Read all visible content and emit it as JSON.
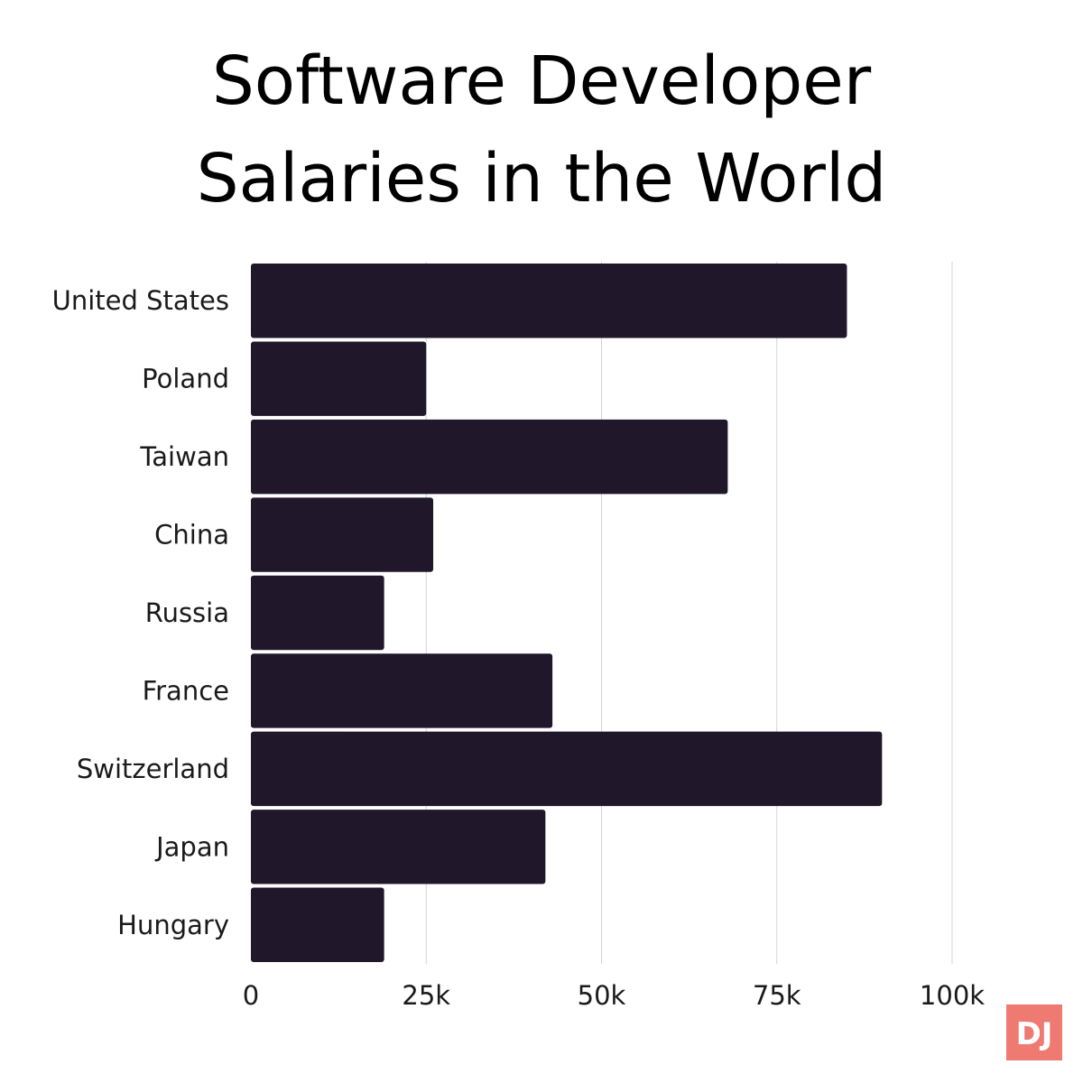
{
  "chart_data": {
    "type": "bar",
    "orientation": "horizontal",
    "title": "Software Developer Salaries in the World",
    "title_lines": [
      "Software Developer",
      "Salaries in the World"
    ],
    "categories": [
      "United States",
      "Poland",
      "Taiwan",
      "China",
      "Russia",
      "France",
      "Switzerland",
      "Japan",
      "Hungary"
    ],
    "values": [
      85000,
      25000,
      68000,
      26000,
      19000,
      43000,
      90000,
      42000,
      19000
    ],
    "xlim": [
      0,
      100000
    ],
    "x_ticks": [
      0,
      25000,
      50000,
      75000,
      100000
    ],
    "x_tick_labels": [
      "0",
      "25k",
      "50k",
      "75k",
      "100k"
    ],
    "xlabel": "",
    "ylabel": "",
    "grid": "vertical",
    "legend": "none",
    "bar_color": "#20172b",
    "grid_color": "#d4d4d4"
  },
  "logo": {
    "text": "DJ",
    "background": "#ee7a72",
    "color": "#ffffff"
  }
}
